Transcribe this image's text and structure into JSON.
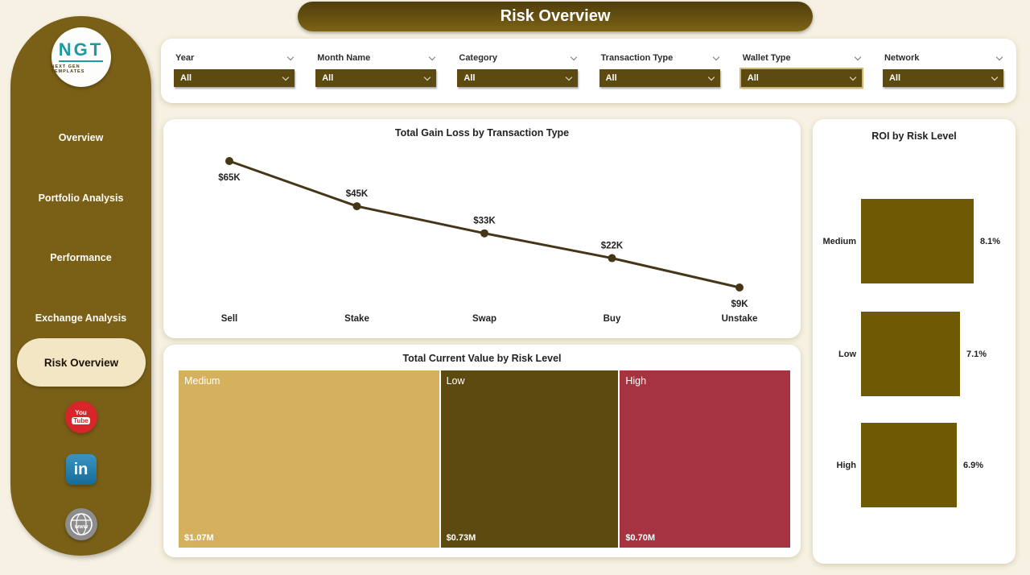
{
  "page": {
    "title": "Risk Overview"
  },
  "sidebar": {
    "logo": {
      "text": "NGT",
      "subtext": "NEXT GEN TEMPLATES"
    },
    "items": [
      {
        "label": "Overview"
      },
      {
        "label": "Portfolio Analysis"
      },
      {
        "label": "Performance"
      },
      {
        "label": "Exchange Analysis"
      },
      {
        "label": "Risk Overview"
      }
    ],
    "social": [
      {
        "name": "youtube",
        "line1": "You",
        "line2": "Tube"
      },
      {
        "name": "linkedin",
        "text": "in"
      },
      {
        "name": "website",
        "text": "www"
      }
    ]
  },
  "filters": [
    {
      "label": "Year",
      "value": "All",
      "highlighted": false
    },
    {
      "label": "Month Name",
      "value": "All",
      "highlighted": false
    },
    {
      "label": "Category",
      "value": "All",
      "highlighted": false
    },
    {
      "label": "Transaction Type",
      "value": "All",
      "highlighted": false
    },
    {
      "label": "Wallet Type",
      "value": "All",
      "highlighted": true
    },
    {
      "label": "Network",
      "value": "All",
      "highlighted": false
    }
  ],
  "colors": {
    "sidebar": "#7a6017",
    "banner_dark": "#4f3d0c",
    "banner_light": "#7c6316",
    "dropdown": "#5c4a10",
    "line": "#453618",
    "background": "#f6f1e2",
    "active_pill": "#f2e6c4"
  },
  "chart_data": [
    {
      "type": "line",
      "title": "Total Gain Loss by Transaction Type",
      "categories": [
        "Sell",
        "Stake",
        "Swap",
        "Buy",
        "Unstake"
      ],
      "values": [
        65000,
        45000,
        33000,
        22000,
        9000
      ],
      "labels": [
        "$65K",
        "$45K",
        "$33K",
        "$22K",
        "$9K"
      ],
      "label_positions": [
        "below",
        "above",
        "above",
        "above",
        "below"
      ],
      "line_color": "#453618",
      "ylim": [
        9000,
        65000
      ]
    },
    {
      "type": "treemap",
      "title": "Total Current Value by Risk Level",
      "categories": [
        "Medium",
        "Low",
        "High"
      ],
      "values": [
        1070000,
        730000,
        700000
      ],
      "labels": [
        "$1.07M",
        "$0.73M",
        "$0.70M"
      ],
      "colors": [
        "#d5b15e",
        "#5d4a10",
        "#a63340"
      ]
    },
    {
      "type": "bar",
      "title": "ROI by Risk Level",
      "orientation": "horizontal",
      "categories": [
        "Medium",
        "Low",
        "High"
      ],
      "values": [
        8.1,
        7.1,
        6.9
      ],
      "labels": [
        "8.1%",
        "7.1%",
        "6.9%"
      ],
      "bar_color": "#6e5a05",
      "xlim": [
        0,
        8.1
      ]
    }
  ]
}
